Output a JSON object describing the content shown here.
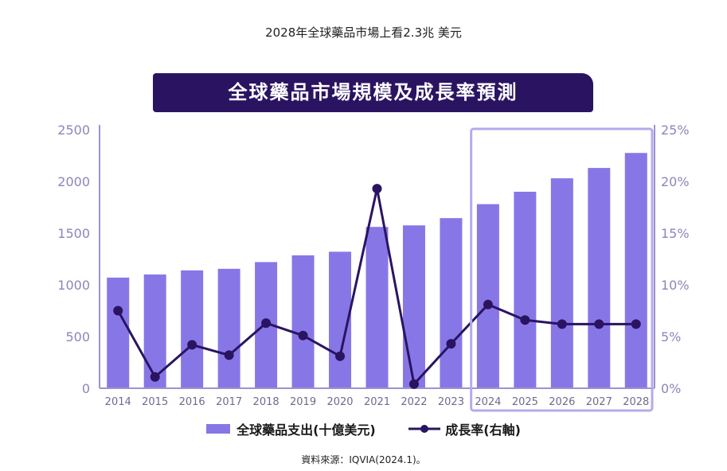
{
  "top_note": "2028年全球藥品市場上看2.3兆 美元",
  "source_note": "資料來源：IQVIA(2024.1)。",
  "colors": {
    "bar": "#8777e6",
    "line": "#2a1462",
    "axis": "#9b93d0",
    "banner": "#2a1462",
    "highlight": "#b7a9ec"
  },
  "chart_data": {
    "type": "bar",
    "title": "全球藥品市場規模及成長率預測",
    "categories": [
      "2014",
      "2015",
      "2016",
      "2017",
      "2018",
      "2019",
      "2020",
      "2021",
      "2022",
      "2023",
      "2024",
      "2025",
      "2026",
      "2027",
      "2028"
    ],
    "series": [
      {
        "name": "全球藥品支出(十億美元)",
        "type": "bar",
        "axis": "left",
        "values": [
          1070,
          1100,
          1140,
          1155,
          1220,
          1285,
          1320,
          1560,
          1575,
          1645,
          1780,
          1900,
          2030,
          2130,
          2275
        ]
      },
      {
        "name": "成長率(右軸)",
        "type": "line",
        "axis": "right",
        "unit": "%",
        "values": [
          7.5,
          1.1,
          4.2,
          3.2,
          6.3,
          5.1,
          3.1,
          19.3,
          0.4,
          4.3,
          8.1,
          6.6,
          6.2,
          6.2,
          6.2
        ]
      }
    ],
    "y_left": {
      "min": 0,
      "max": 2500,
      "ticks": [
        "0",
        "500",
        "1000",
        "1500",
        "2000",
        "2500"
      ]
    },
    "y_right": {
      "min": 0,
      "max": 25,
      "ticks": [
        "0%",
        "5%",
        "10%",
        "15%",
        "20%",
        "25%"
      ]
    },
    "highlight_range": [
      "2024",
      "2028"
    ],
    "legend_position": "bottom-center",
    "grid": false
  }
}
